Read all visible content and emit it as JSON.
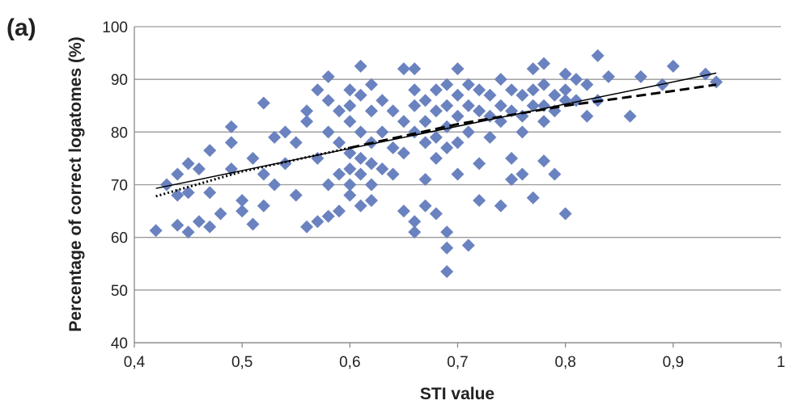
{
  "chart_data": {
    "type": "scatter",
    "label": "(a)",
    "xlabel": "STI value",
    "ylabel": "Percentage of correct logatomes (%)",
    "xlim": [
      0.4,
      1
    ],
    "ylim": [
      40,
      100
    ],
    "xticks": [
      {
        "value": 0.4,
        "label": "0,4"
      },
      {
        "value": 0.5,
        "label": "0,5"
      },
      {
        "value": 0.6,
        "label": "0,6"
      },
      {
        "value": 0.7,
        "label": "0,7"
      },
      {
        "value": 0.8,
        "label": "0,8"
      },
      {
        "value": 0.9,
        "label": "0,9"
      },
      1
    ],
    "yticks": [
      40,
      50,
      60,
      70,
      80,
      90,
      100
    ],
    "grid": true,
    "series": [
      {
        "mode": "diamond",
        "color": "#6a82bf",
        "x": [
          0.42,
          0.44,
          0.45,
          0.46,
          0.47,
          0.44,
          0.45,
          0.46,
          0.47,
          0.43,
          0.44,
          0.45,
          0.47,
          0.48,
          0.49,
          0.49,
          0.49,
          0.5,
          0.5,
          0.51,
          0.51,
          0.52,
          0.52,
          0.52,
          0.53,
          0.53,
          0.54,
          0.54,
          0.55,
          0.55,
          0.56,
          0.56,
          0.56,
          0.57,
          0.57,
          0.57,
          0.58,
          0.58,
          0.58,
          0.58,
          0.58,
          0.59,
          0.59,
          0.59,
          0.59,
          0.6,
          0.6,
          0.6,
          0.6,
          0.6,
          0.6,
          0.6,
          0.61,
          0.61,
          0.61,
          0.61,
          0.61,
          0.61,
          0.62,
          0.62,
          0.62,
          0.62,
          0.62,
          0.62,
          0.63,
          0.63,
          0.63,
          0.64,
          0.64,
          0.64,
          0.65,
          0.65,
          0.65,
          0.65,
          0.66,
          0.66,
          0.66,
          0.66,
          0.66,
          0.66,
          0.67,
          0.67,
          0.67,
          0.67,
          0.67,
          0.68,
          0.68,
          0.68,
          0.68,
          0.68,
          0.69,
          0.69,
          0.69,
          0.69,
          0.69,
          0.69,
          0.69,
          0.7,
          0.7,
          0.7,
          0.7,
          0.7,
          0.71,
          0.71,
          0.71,
          0.71,
          0.72,
          0.72,
          0.72,
          0.72,
          0.73,
          0.73,
          0.73,
          0.74,
          0.74,
          0.74,
          0.74,
          0.75,
          0.75,
          0.75,
          0.75,
          0.76,
          0.76,
          0.76,
          0.76,
          0.77,
          0.77,
          0.77,
          0.77,
          0.78,
          0.78,
          0.78,
          0.78,
          0.78,
          0.79,
          0.79,
          0.79,
          0.8,
          0.8,
          0.8,
          0.8,
          0.81,
          0.81,
          0.82,
          0.82,
          0.83,
          0.83,
          0.84,
          0.86,
          0.87,
          0.89,
          0.9,
          0.93,
          0.94
        ],
        "values": [
          61.3,
          62.3,
          61,
          63,
          62,
          72,
          74,
          73,
          76.5,
          70,
          68,
          68.5,
          68.5,
          64.5,
          81,
          78,
          73,
          67,
          65,
          62.5,
          75,
          85.5,
          72,
          66,
          70,
          79,
          80,
          74,
          68,
          78,
          84,
          82,
          62,
          88,
          63,
          75,
          90.5,
          86,
          80,
          70,
          64,
          84,
          78,
          72,
          65,
          88,
          85,
          82,
          76,
          73,
          70,
          68,
          92.5,
          87,
          80,
          75,
          72,
          66,
          89,
          84,
          78,
          74,
          70,
          67,
          86,
          80,
          73,
          84,
          77,
          72,
          92,
          82,
          76,
          65,
          92,
          88,
          85,
          80,
          61,
          63,
          86,
          82,
          78,
          71,
          66,
          88,
          84,
          79,
          75,
          64.5,
          89,
          85,
          81,
          77,
          61,
          58,
          53.5,
          92,
          87,
          83,
          78,
          72,
          89,
          85,
          80,
          58.5,
          88,
          84,
          74,
          67,
          87,
          83,
          79,
          90,
          85,
          82,
          66,
          88,
          84,
          75,
          71,
          87,
          83,
          80,
          72,
          92,
          88,
          85,
          67.5,
          93,
          89,
          85,
          82,
          74.5,
          87,
          84,
          72,
          91,
          88,
          86,
          64.5,
          90,
          86,
          89,
          83,
          94.5,
          86,
          90.5,
          83,
          90.5,
          89,
          92.5,
          91,
          89.5
        ]
      },
      {
        "mode": "solid",
        "color": "#000000",
        "x": [
          0.42,
          0.94
        ],
        "values": [
          69.3,
          91.2
        ]
      },
      {
        "mode": "dashed",
        "color": "#000000",
        "x": [
          0.6,
          0.7,
          0.8,
          0.9,
          0.94
        ],
        "values": [
          77,
          81.5,
          85,
          87.8,
          89
        ]
      },
      {
        "mode": "dotted",
        "color": "#000000",
        "x": [
          0.42,
          0.5,
          0.6
        ],
        "values": [
          67.8,
          72.5,
          77
        ]
      }
    ]
  }
}
